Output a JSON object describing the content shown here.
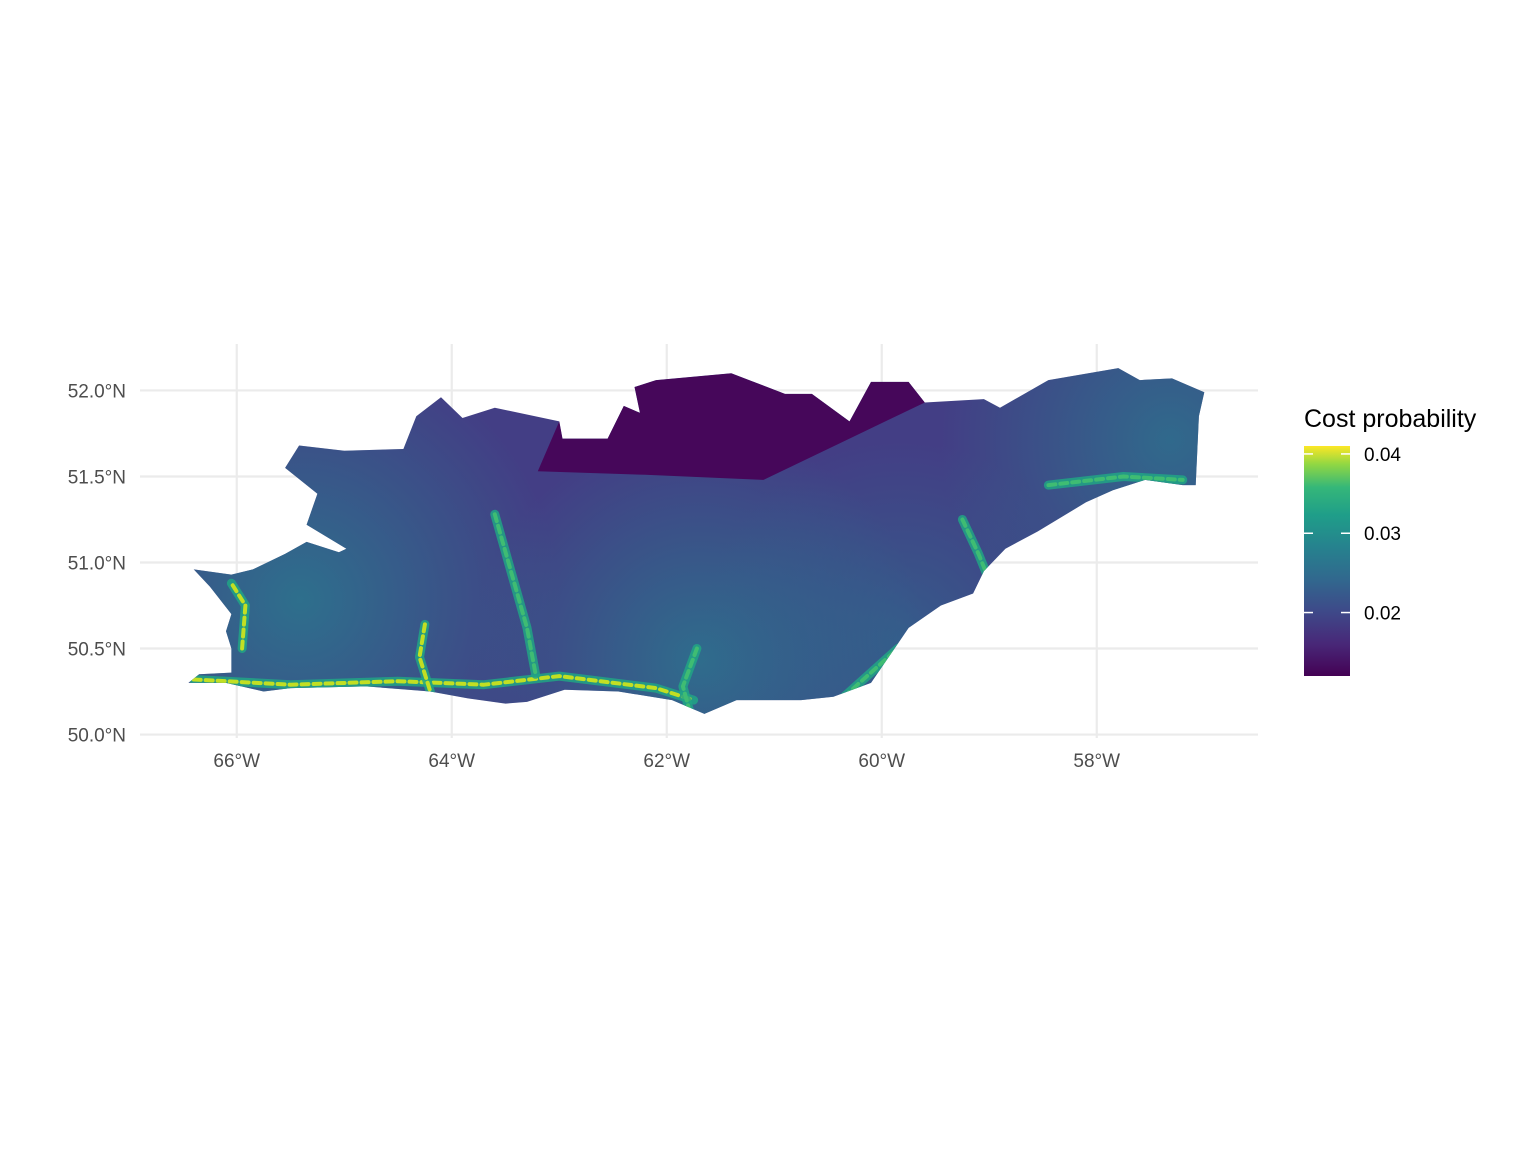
{
  "chart_data": {
    "type": "heatmap",
    "subtype": "hexagonal map",
    "title": "",
    "xlabel": "",
    "ylabel": "",
    "x_ticks": [
      {
        "value": -66,
        "label": "66°W"
      },
      {
        "value": -64,
        "label": "64°W"
      },
      {
        "value": -62,
        "label": "62°W"
      },
      {
        "value": -60,
        "label": "60°W"
      },
      {
        "value": -58,
        "label": "58°W"
      }
    ],
    "y_ticks": [
      {
        "value": 50.0,
        "label": "50.0°N"
      },
      {
        "value": 50.5,
        "label": "50.5°N"
      },
      {
        "value": 51.0,
        "label": "51.0°N"
      },
      {
        "value": 51.5,
        "label": "51.5°N"
      },
      {
        "value": 52.0,
        "label": "52.0°N"
      }
    ],
    "xlim": [
      -66.9,
      -56.5
    ],
    "ylim": [
      49.98,
      52.27
    ],
    "grid": true,
    "legend": {
      "title": "Cost probability",
      "position": "right",
      "range": [
        0.012,
        0.041
      ],
      "ticks": [
        {
          "value": 0.04,
          "label": "0.04"
        },
        {
          "value": 0.03,
          "label": "0.03"
        },
        {
          "value": 0.02,
          "label": "0.02"
        }
      ],
      "colormap": "viridis"
    },
    "region_outline_lonlat": [
      [
        -66.4,
        50.96
      ],
      [
        -66.05,
        50.93
      ],
      [
        -65.85,
        50.96
      ],
      [
        -65.55,
        51.05
      ],
      [
        -65.35,
        51.12
      ],
      [
        -65.05,
        51.06
      ],
      [
        -64.98,
        51.08
      ],
      [
        -65.35,
        51.22
      ],
      [
        -65.25,
        51.4
      ],
      [
        -65.55,
        51.55
      ],
      [
        -65.42,
        51.68
      ],
      [
        -65.0,
        51.65
      ],
      [
        -64.45,
        51.66
      ],
      [
        -64.33,
        51.85
      ],
      [
        -64.1,
        51.96
      ],
      [
        -63.9,
        51.84
      ],
      [
        -63.6,
        51.9
      ],
      [
        -63.0,
        51.82
      ],
      [
        -62.97,
        51.72
      ],
      [
        -62.55,
        51.72
      ],
      [
        -62.4,
        51.91
      ],
      [
        -62.25,
        51.87
      ],
      [
        -62.3,
        52.02
      ],
      [
        -62.1,
        52.06
      ],
      [
        -61.4,
        52.1
      ],
      [
        -60.9,
        51.98
      ],
      [
        -60.65,
        51.98
      ],
      [
        -60.3,
        51.82
      ],
      [
        -60.1,
        52.05
      ],
      [
        -59.75,
        52.05
      ],
      [
        -59.6,
        51.93
      ],
      [
        -59.05,
        51.95
      ],
      [
        -58.9,
        51.9
      ],
      [
        -58.45,
        52.06
      ],
      [
        -57.8,
        52.13
      ],
      [
        -57.6,
        52.06
      ],
      [
        -57.3,
        52.07
      ],
      [
        -57.0,
        51.99
      ],
      [
        -57.05,
        51.85
      ],
      [
        -57.08,
        51.45
      ],
      [
        -57.2,
        51.45
      ],
      [
        -57.55,
        51.48
      ],
      [
        -57.85,
        51.42
      ],
      [
        -58.1,
        51.35
      ],
      [
        -58.55,
        51.18
      ],
      [
        -58.85,
        51.08
      ],
      [
        -59.05,
        50.95
      ],
      [
        -59.15,
        50.82
      ],
      [
        -59.45,
        50.75
      ],
      [
        -59.75,
        50.62
      ],
      [
        -60.1,
        50.3
      ],
      [
        -60.45,
        50.22
      ],
      [
        -60.75,
        50.2
      ],
      [
        -61.35,
        50.2
      ],
      [
        -61.65,
        50.12
      ],
      [
        -61.95,
        50.2
      ],
      [
        -62.45,
        50.25
      ],
      [
        -62.95,
        50.26
      ],
      [
        -63.3,
        50.19
      ],
      [
        -63.5,
        50.18
      ],
      [
        -63.85,
        50.21
      ],
      [
        -64.2,
        50.25
      ],
      [
        -64.8,
        50.28
      ],
      [
        -65.5,
        50.27
      ],
      [
        -65.75,
        50.25
      ],
      [
        -66.1,
        50.3
      ],
      [
        -66.45,
        50.3
      ],
      [
        -66.35,
        50.35
      ],
      [
        -66.05,
        50.36
      ],
      [
        -66.05,
        50.5
      ],
      [
        -66.1,
        50.6
      ],
      [
        -66.05,
        50.7
      ],
      [
        -66.25,
        50.86
      ],
      [
        -66.4,
        50.96
      ]
    ],
    "high_cost_lines_lonlat": [
      [
        [
          -66.4,
          50.32
        ],
        [
          -65.5,
          50.29
        ],
        [
          -64.5,
          50.31
        ],
        [
          -63.7,
          50.29
        ],
        [
          -63.0,
          50.34
        ],
        [
          -62.1,
          50.27
        ],
        [
          -61.75,
          50.2
        ]
      ],
      [
        [
          -63.6,
          51.28
        ],
        [
          -63.45,
          50.95
        ],
        [
          -63.3,
          50.62
        ],
        [
          -63.22,
          50.35
        ]
      ],
      [
        [
          -64.25,
          50.64
        ],
        [
          -64.3,
          50.45
        ],
        [
          -64.2,
          50.25
        ]
      ],
      [
        [
          -61.72,
          50.5
        ],
        [
          -61.85,
          50.28
        ],
        [
          -61.78,
          50.12
        ]
      ],
      [
        [
          -65.95,
          50.5
        ],
        [
          -65.92,
          50.75
        ],
        [
          -66.05,
          50.88
        ]
      ],
      [
        [
          -58.45,
          51.45
        ],
        [
          -57.75,
          51.5
        ],
        [
          -57.2,
          51.48
        ]
      ],
      [
        [
          -59.25,
          51.25
        ],
        [
          -59.1,
          51.05
        ],
        [
          -58.95,
          50.82
        ]
      ],
      [
        [
          -60.35,
          50.22
        ],
        [
          -59.85,
          50.5
        ],
        [
          -59.55,
          50.62
        ]
      ]
    ],
    "low_cost_zone_lonlat": [
      [
        -63.0,
        51.82
      ],
      [
        -62.97,
        51.72
      ],
      [
        -62.55,
        51.72
      ],
      [
        -62.4,
        51.91
      ],
      [
        -62.25,
        51.87
      ],
      [
        -62.3,
        52.02
      ],
      [
        -62.1,
        52.06
      ],
      [
        -61.4,
        52.1
      ],
      [
        -60.9,
        51.98
      ],
      [
        -60.65,
        51.98
      ],
      [
        -60.3,
        51.82
      ],
      [
        -60.1,
        52.05
      ],
      [
        -59.75,
        52.05
      ],
      [
        -59.6,
        51.93
      ],
      [
        -60.3,
        51.72
      ],
      [
        -61.1,
        51.48
      ],
      [
        -62.2,
        51.51
      ],
      [
        -63.2,
        51.53
      ],
      [
        -63.0,
        51.82
      ]
    ]
  }
}
